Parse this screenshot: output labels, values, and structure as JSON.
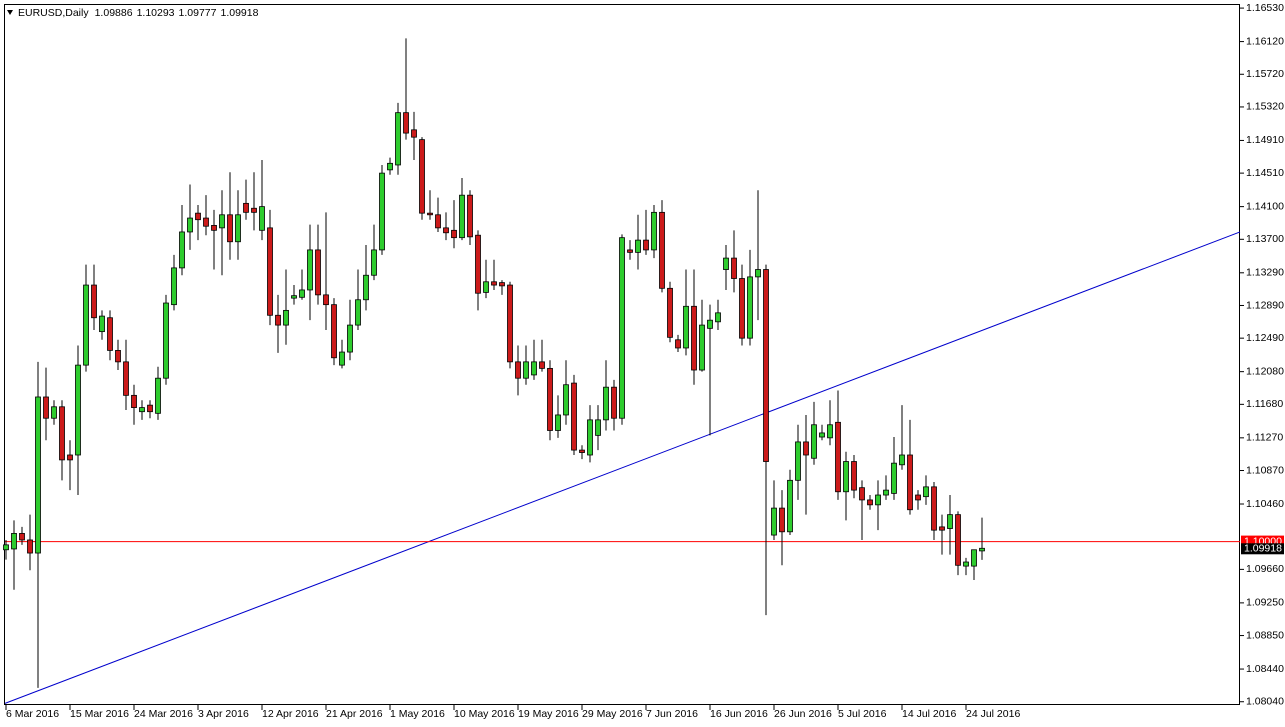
{
  "chart_data": {
    "type": "candlestick",
    "title": "EURUSD,Daily",
    "up_color": "#2ecc2e",
    "down_color": "#cc1a1a",
    "ylim": [
      1.08,
      1.1658
    ],
    "yticks": [
      {
        "value": 1.1653,
        "label": "1.16530"
      },
      {
        "value": 1.1612,
        "label": "1.16120"
      },
      {
        "value": 1.1572,
        "label": "1.15720"
      },
      {
        "value": 1.1532,
        "label": "1.15320"
      },
      {
        "value": 1.1491,
        "label": "1.14910"
      },
      {
        "value": 1.1451,
        "label": "1.14510"
      },
      {
        "value": 1.141,
        "label": "1.14100"
      },
      {
        "value": 1.137,
        "label": "1.13700"
      },
      {
        "value": 1.1329,
        "label": "1.13290"
      },
      {
        "value": 1.1289,
        "label": "1.12890"
      },
      {
        "value": 1.1249,
        "label": "1.12490"
      },
      {
        "value": 1.1208,
        "label": "1.12080"
      },
      {
        "value": 1.1168,
        "label": "1.11680"
      },
      {
        "value": 1.1127,
        "label": "1.11270"
      },
      {
        "value": 1.1087,
        "label": "1.10870"
      },
      {
        "value": 1.1046,
        "label": "1.10460"
      },
      {
        "value": 1.0966,
        "label": "1.09660"
      },
      {
        "value": 1.0925,
        "label": "1.09250"
      },
      {
        "value": 1.0885,
        "label": "1.08850"
      },
      {
        "value": 1.0844,
        "label": "1.08440"
      },
      {
        "value": 1.0804,
        "label": "1.08040"
      }
    ],
    "hline": {
      "value": 1.1,
      "label": "1.10000",
      "color": "#ff0000"
    },
    "trendline": [
      1.0802,
      1.1379
    ],
    "trendline_color": "#0000cc",
    "categories": [
      "6 Mar 2016",
      null,
      null,
      null,
      null,
      null,
      null,
      null,
      "15 Mar 2016",
      null,
      null,
      null,
      null,
      null,
      null,
      null,
      "24 Mar 2016",
      null,
      null,
      null,
      null,
      null,
      null,
      null,
      "3 Apr 2016",
      null,
      null,
      null,
      null,
      null,
      null,
      null,
      "12 Apr 2016",
      null,
      null,
      null,
      null,
      null,
      null,
      null,
      "21 Apr 2016",
      null,
      null,
      null,
      null,
      null,
      null,
      null,
      "1 May 2016",
      null,
      null,
      null,
      null,
      null,
      null,
      null,
      "10 May 2016",
      null,
      null,
      null,
      null,
      null,
      null,
      null,
      "19 May 2016",
      null,
      null,
      null,
      null,
      null,
      null,
      null,
      "29 May 2016",
      null,
      null,
      null,
      null,
      null,
      null,
      null,
      "7 Jun 2016",
      null,
      null,
      null,
      null,
      null,
      null,
      null,
      "16 Jun 2016",
      null,
      null,
      null,
      null,
      null,
      null,
      null,
      "26 Jun 2016",
      null,
      null,
      null,
      null,
      null,
      null,
      null,
      "5 Jul 2016",
      null,
      null,
      null,
      null,
      null,
      null,
      null,
      "14 Jul 2016",
      null,
      null,
      null,
      null,
      null,
      null,
      null,
      "24 Jul 2016",
      null,
      null
    ],
    "ohlc": [
      [
        1.099,
        1.1002,
        1.0978,
        1.0996
      ],
      [
        1.0991,
        1.1026,
        1.0941,
        1.101
      ],
      [
        1.101,
        1.1018,
        1.0996,
        1.1002
      ],
      [
        1.1002,
        1.1033,
        1.0965,
        1.0986
      ],
      [
        1.0986,
        1.122,
        1.0821,
        1.1177
      ],
      [
        1.1177,
        1.1213,
        1.1124,
        1.1151
      ],
      [
        1.1151,
        1.1173,
        1.1143,
        1.1165
      ],
      [
        1.1165,
        1.1173,
        1.1075,
        1.11
      ],
      [
        1.1106,
        1.1124,
        1.1063,
        1.11
      ],
      [
        1.1106,
        1.124,
        1.1057,
        1.1216
      ],
      [
        1.1216,
        1.1339,
        1.1208,
        1.1314
      ],
      [
        1.1314,
        1.1339,
        1.1259,
        1.1274
      ],
      [
        1.1257,
        1.1283,
        1.1247,
        1.1276
      ],
      [
        1.1274,
        1.1283,
        1.1222,
        1.1234
      ],
      [
        1.1234,
        1.1247,
        1.121,
        1.122
      ],
      [
        1.122,
        1.1247,
        1.1161,
        1.1179
      ],
      [
        1.1179,
        1.1192,
        1.1143,
        1.1164
      ],
      [
        1.1159,
        1.1173,
        1.1149,
        1.1164
      ],
      [
        1.1167,
        1.1173,
        1.1151,
        1.1159
      ],
      [
        1.1157,
        1.1214,
        1.1149,
        1.12
      ],
      [
        1.12,
        1.1302,
        1.1192,
        1.1292
      ],
      [
        1.129,
        1.1351,
        1.1283,
        1.1335
      ],
      [
        1.1335,
        1.1412,
        1.1326,
        1.1379
      ],
      [
        1.1379,
        1.1437,
        1.1357,
        1.1396
      ],
      [
        1.1402,
        1.1412,
        1.1369,
        1.1394
      ],
      [
        1.1396,
        1.1424,
        1.1375,
        1.1386
      ],
      [
        1.1387,
        1.1406,
        1.1333,
        1.1381
      ],
      [
        1.1384,
        1.143,
        1.1326,
        1.14
      ],
      [
        1.14,
        1.1452,
        1.1345,
        1.1367
      ],
      [
        1.1367,
        1.143,
        1.1345,
        1.14
      ],
      [
        1.1414,
        1.1443,
        1.1394,
        1.1403
      ],
      [
        1.1408,
        1.1452,
        1.1381,
        1.1403
      ],
      [
        1.1381,
        1.1467,
        1.1369,
        1.141
      ],
      [
        1.1384,
        1.1406,
        1.1265,
        1.1277
      ],
      [
        1.1277,
        1.1302,
        1.1231,
        1.1265
      ],
      [
        1.1265,
        1.1333,
        1.1241,
        1.1283
      ],
      [
        1.1298,
        1.1314,
        1.129,
        1.1301
      ],
      [
        1.1299,
        1.1333,
        1.1296,
        1.1308
      ],
      [
        1.1308,
        1.1388,
        1.1271,
        1.1357
      ],
      [
        1.1357,
        1.1388,
        1.129,
        1.1302
      ],
      [
        1.1302,
        1.1403,
        1.1259,
        1.129
      ],
      [
        1.129,
        1.1298,
        1.1216,
        1.1225
      ],
      [
        1.1216,
        1.1247,
        1.1212,
        1.1232
      ],
      [
        1.1232,
        1.1296,
        1.1222,
        1.1265
      ],
      [
        1.1265,
        1.1333,
        1.1259,
        1.1296
      ],
      [
        1.1296,
        1.1363,
        1.1283,
        1.1326
      ],
      [
        1.1326,
        1.1388,
        1.132,
        1.1357
      ],
      [
        1.1357,
        1.1461,
        1.1351,
        1.1451
      ],
      [
        1.1455,
        1.147,
        1.1449,
        1.1463
      ],
      [
        1.1461,
        1.1537,
        1.1449,
        1.1525
      ],
      [
        1.1525,
        1.1616,
        1.1492,
        1.15
      ],
      [
        1.1504,
        1.1526,
        1.1467,
        1.1495
      ],
      [
        1.1492,
        1.1495,
        1.1394,
        1.1402
      ],
      [
        1.1402,
        1.143,
        1.1394,
        1.14
      ],
      [
        1.14,
        1.1421,
        1.1379,
        1.1384
      ],
      [
        1.1384,
        1.1403,
        1.1369,
        1.1378
      ],
      [
        1.1381,
        1.1418,
        1.1359,
        1.1372
      ],
      [
        1.1372,
        1.1445,
        1.1369,
        1.1424
      ],
      [
        1.1424,
        1.143,
        1.1363,
        1.1373
      ],
      [
        1.1375,
        1.1381,
        1.1283,
        1.1304
      ],
      [
        1.1305,
        1.1345,
        1.1298,
        1.1318
      ],
      [
        1.1318,
        1.1345,
        1.1308,
        1.1314
      ],
      [
        1.1317,
        1.132,
        1.1302,
        1.1313
      ],
      [
        1.1314,
        1.1318,
        1.1212,
        1.122
      ],
      [
        1.122,
        1.124,
        1.1179,
        1.12
      ],
      [
        1.12,
        1.124,
        1.1192,
        1.122
      ],
      [
        1.1204,
        1.1247,
        1.1198,
        1.122
      ],
      [
        1.122,
        1.1247,
        1.1208,
        1.1212
      ],
      [
        1.1212,
        1.1222,
        1.1124,
        1.1136
      ],
      [
        1.1136,
        1.1179,
        1.1127,
        1.1155
      ],
      [
        1.1155,
        1.1222,
        1.1143,
        1.1192
      ],
      [
        1.1194,
        1.1204,
        1.1106,
        1.1112
      ],
      [
        1.1112,
        1.1118,
        1.1101,
        1.1109
      ],
      [
        1.1106,
        1.1167,
        1.1097,
        1.1149
      ],
      [
        1.113,
        1.1167,
        1.1112,
        1.1149
      ],
      [
        1.1149,
        1.1222,
        1.1136,
        1.1189
      ],
      [
        1.1189,
        1.1198,
        1.1136,
        1.1151
      ],
      [
        1.1151,
        1.1376,
        1.1143,
        1.1372
      ],
      [
        1.1357,
        1.1369,
        1.1345,
        1.1354
      ],
      [
        1.1354,
        1.14,
        1.1333,
        1.1369
      ],
      [
        1.1369,
        1.1406,
        1.1351,
        1.1357
      ],
      [
        1.1357,
        1.1412,
        1.1347,
        1.1403
      ],
      [
        1.1403,
        1.1418,
        1.1305,
        1.131
      ],
      [
        1.131,
        1.1318,
        1.1244,
        1.125
      ],
      [
        1.1247,
        1.1253,
        1.1232,
        1.1237
      ],
      [
        1.1237,
        1.1333,
        1.1228,
        1.1288
      ],
      [
        1.1288,
        1.1333,
        1.1192,
        1.121
      ],
      [
        1.121,
        1.1296,
        1.1208,
        1.1265
      ],
      [
        1.1261,
        1.129,
        1.113,
        1.1271
      ],
      [
        1.1269,
        1.1296,
        1.1259,
        1.128
      ],
      [
        1.1333,
        1.1363,
        1.1308,
        1.1347
      ],
      [
        1.1347,
        1.1381,
        1.1305,
        1.1322
      ],
      [
        1.1322,
        1.1339,
        1.124,
        1.1249
      ],
      [
        1.1249,
        1.1357,
        1.124,
        1.1324
      ],
      [
        1.1324,
        1.143,
        1.1271,
        1.1333
      ],
      [
        1.1333,
        1.1339,
        1.091,
        1.1098
      ],
      [
        1.1008,
        1.1075,
        1.1002,
        1.1041
      ],
      [
        1.1041,
        1.1063,
        1.0971,
        1.1012
      ],
      [
        1.1012,
        1.1088,
        1.1008,
        1.1075
      ],
      [
        1.1075,
        1.1143,
        1.1051,
        1.1122
      ],
      [
        1.1122,
        1.1155,
        1.1033,
        1.1106
      ],
      [
        1.1102,
        1.1171,
        1.1094,
        1.1143
      ],
      [
        1.1128,
        1.1143,
        1.1124,
        1.1133
      ],
      [
        1.1127,
        1.1173,
        1.1118,
        1.1143
      ],
      [
        1.1146,
        1.1185,
        1.1051,
        1.1061
      ],
      [
        1.1061,
        1.111,
        1.1026,
        1.1098
      ],
      [
        1.1098,
        1.1106,
        1.1053,
        1.1063
      ],
      [
        1.1066,
        1.1075,
        1.1002,
        1.1051
      ],
      [
        1.1051,
        1.1057,
        1.1039,
        1.1045
      ],
      [
        1.1045,
        1.1075,
        1.1014,
        1.1057
      ],
      [
        1.1057,
        1.1081,
        1.1051,
        1.1063
      ],
      [
        1.1059,
        1.1128,
        1.1051,
        1.1096
      ],
      [
        1.1094,
        1.1167,
        1.1088,
        1.1106
      ],
      [
        1.1106,
        1.1149,
        1.1033,
        1.1039
      ],
      [
        1.1057,
        1.1063,
        1.1039,
        1.1051
      ],
      [
        1.1055,
        1.1081,
        1.1045,
        1.1067
      ],
      [
        1.1067,
        1.1073,
        1.1002,
        1.1014
      ],
      [
        1.1018,
        1.1033,
        1.0984,
        1.1014
      ],
      [
        1.1016,
        1.1057,
        1.0984,
        1.1033
      ],
      [
        1.1033,
        1.1037,
        1.0959,
        1.0971
      ],
      [
        1.097,
        1.098,
        1.0959,
        1.0975
      ],
      [
        1.097,
        1.0989,
        1.0953,
        1.099
      ],
      [
        1.09886,
        1.10293,
        1.09777,
        1.09918
      ]
    ]
  }
}
